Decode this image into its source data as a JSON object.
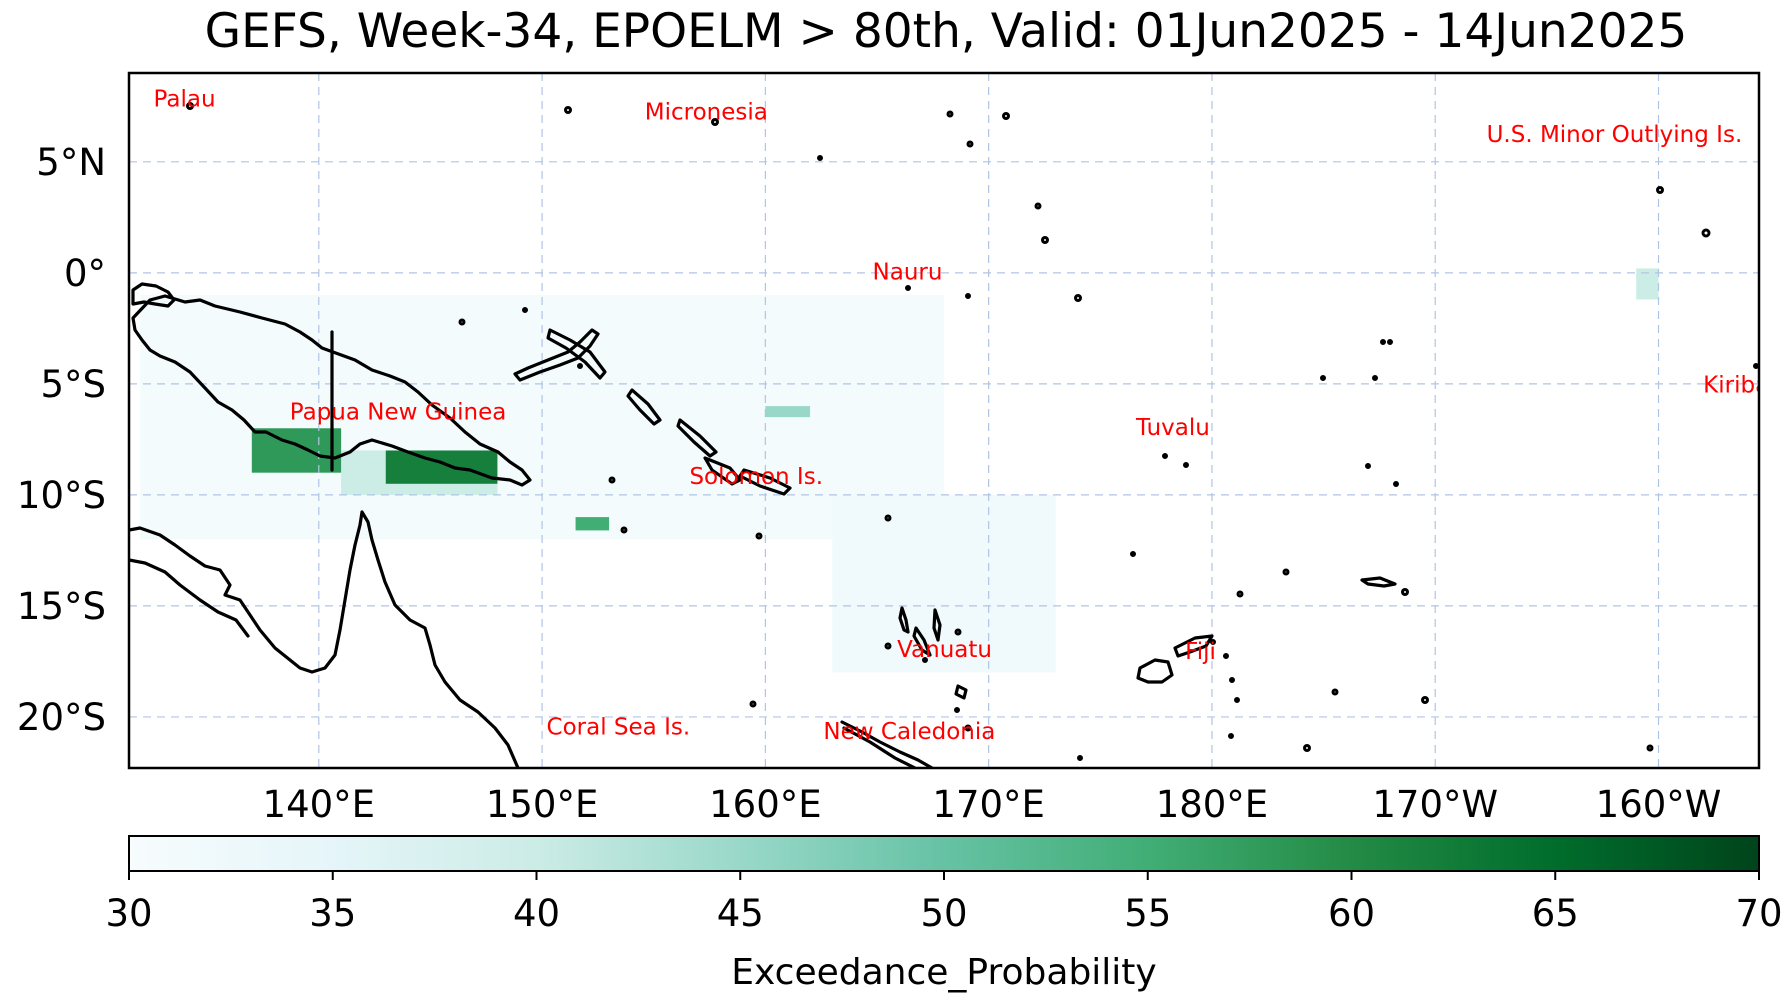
{
  "title": "GEFS, Week-34, EPOELM > 80th, Valid: 01Jun2025 - 14Jun2025",
  "map": {
    "projection": "PlateCarree",
    "lon_range": [
      131.5,
      204.5
    ],
    "lat_range": [
      -22.3,
      9.0
    ],
    "gridlines": true,
    "lon_ticks": [
      {
        "lon": 140,
        "label": "140°E"
      },
      {
        "lon": 150,
        "label": "150°E"
      },
      {
        "lon": 160,
        "label": "160°E"
      },
      {
        "lon": 170,
        "label": "170°E"
      },
      {
        "lon": 180,
        "label": "180°E"
      },
      {
        "lon": 190,
        "label": "170°W"
      },
      {
        "lon": 200,
        "label": "160°W"
      }
    ],
    "lat_ticks": [
      {
        "lat": 5,
        "label": "5°N"
      },
      {
        "lat": 0,
        "label": "0°"
      },
      {
        "lat": -5,
        "label": "5°S"
      },
      {
        "lat": -10,
        "label": "10°S"
      },
      {
        "lat": -15,
        "label": "15°S"
      },
      {
        "lat": -20,
        "label": "20°S"
      }
    ],
    "place_labels": [
      {
        "name": "Palau",
        "lon": 132.6,
        "lat": 7.5
      },
      {
        "name": "Micronesia",
        "lon": 154.6,
        "lat": 6.9
      },
      {
        "name": "U.S. Minor Outlying Is.",
        "lon": 192.3,
        "lat": 5.9
      },
      {
        "name": "Nauru",
        "lon": 164.8,
        "lat": -0.3
      },
      {
        "name": "Kiribati",
        "lon": 202.0,
        "lat": -5.4
      },
      {
        "name": "Papua New Guinea",
        "lon": 138.7,
        "lat": -6.6
      },
      {
        "name": "Tuvalu",
        "lon": 176.6,
        "lat": -7.3
      },
      {
        "name": "Solomon Is.",
        "lon": 156.6,
        "lat": -9.5
      },
      {
        "name": "Vanuatu",
        "lon": 165.9,
        "lat": -17.3
      },
      {
        "name": "Fiji",
        "lon": 178.8,
        "lat": -17.4
      },
      {
        "name": "Coral Sea Is.",
        "lon": 150.2,
        "lat": -20.8
      },
      {
        "name": "New Caledonia",
        "lon": 162.6,
        "lat": -21.0
      }
    ]
  },
  "colorbar": {
    "label": "Exceedance_Probability",
    "min": 30,
    "max": 70,
    "ticks": [
      30,
      35,
      40,
      45,
      50,
      55,
      60,
      65,
      70
    ],
    "colormap": "BuGn",
    "colors": [
      "#f7fcfd",
      "#e5f5f9",
      "#ccece6",
      "#99d8c9",
      "#66c2a4",
      "#41ae76",
      "#238b45",
      "#006d2c",
      "#00441b"
    ]
  },
  "probability_regions": [
    {
      "level": 31,
      "lon_min": 132,
      "lon_max": 168,
      "lat_min": -12,
      "lat_max": -1
    },
    {
      "level": 32,
      "lon_min": 163,
      "lon_max": 173,
      "lat_min": -18,
      "lat_max": -10
    },
    {
      "level": 40,
      "lon_min": 141,
      "lon_max": 148,
      "lat_min": -10,
      "lat_max": -8
    },
    {
      "level": 58,
      "lon_min": 137,
      "lon_max": 141,
      "lat_min": -9,
      "lat_max": -7
    },
    {
      "level": 62,
      "lon_min": 143,
      "lon_max": 148,
      "lat_min": -9.5,
      "lat_max": -8
    },
    {
      "level": 55,
      "lon_min": 151.5,
      "lon_max": 153,
      "lat_min": -11.6,
      "lat_max": -11
    },
    {
      "level": 45,
      "lon_min": 160,
      "lon_max": 162,
      "lat_min": -6.5,
      "lat_max": -6
    },
    {
      "level": 40,
      "lon_min": 199,
      "lon_max": 200,
      "lat_min": -1.2,
      "lat_max": 0.2
    }
  ]
}
